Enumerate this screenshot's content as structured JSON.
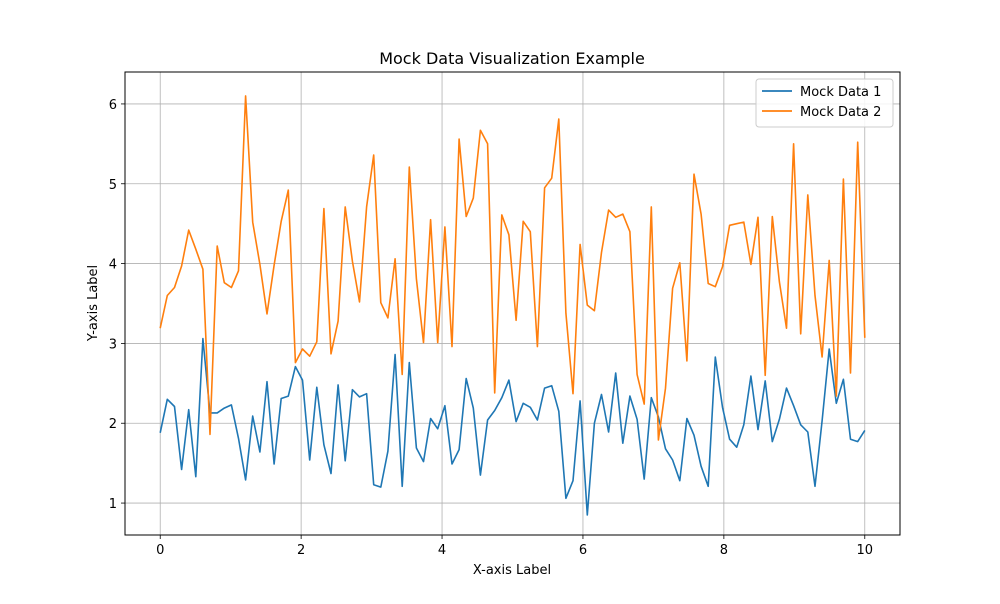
{
  "chart_data": {
    "type": "line",
    "title": "Mock Data Visualization Example",
    "xlabel": "X-axis Label",
    "ylabel": "Y-axis Label",
    "xlim": [
      -0.5,
      10.5
    ],
    "ylim": [
      0.6,
      6.4
    ],
    "xticks": [
      0,
      2,
      4,
      6,
      8,
      10
    ],
    "yticks": [
      1,
      2,
      3,
      4,
      5,
      6
    ],
    "grid": true,
    "legend_position": "top-right",
    "x": [
      0,
      0.101,
      0.202,
      0.303,
      0.404,
      0.505,
      0.606,
      0.707,
      0.808,
      0.909,
      1.01,
      1.111,
      1.212,
      1.313,
      1.414,
      1.515,
      1.616,
      1.717,
      1.818,
      1.919,
      2.02,
      2.121,
      2.222,
      2.323,
      2.424,
      2.525,
      2.626,
      2.727,
      2.828,
      2.929,
      3.03,
      3.131,
      3.232,
      3.333,
      3.434,
      3.535,
      3.636,
      3.737,
      3.838,
      3.939,
      4.04,
      4.141,
      4.242,
      4.343,
      4.444,
      4.545,
      4.646,
      4.747,
      4.848,
      4.949,
      5.051,
      5.152,
      5.253,
      5.354,
      5.455,
      5.556,
      5.657,
      5.758,
      5.859,
      5.96,
      6.061,
      6.162,
      6.263,
      6.364,
      6.465,
      6.566,
      6.667,
      6.768,
      6.869,
      6.97,
      7.071,
      7.172,
      7.273,
      7.374,
      7.475,
      7.576,
      7.677,
      7.778,
      7.879,
      7.98,
      8.081,
      8.182,
      8.283,
      8.384,
      8.485,
      8.586,
      8.687,
      8.788,
      8.889,
      8.99,
      9.091,
      9.192,
      9.293,
      9.394,
      9.495,
      9.596,
      9.697,
      9.798,
      9.899,
      10
    ],
    "series": [
      {
        "name": "Mock Data 1",
        "color": "#1f77b4",
        "values": [
          1.88,
          2.3,
          2.21,
          1.42,
          2.17,
          1.33,
          3.06,
          2.13,
          2.13,
          2.19,
          2.23,
          1.81,
          1.29,
          2.09,
          1.64,
          2.52,
          1.49,
          2.31,
          2.34,
          2.71,
          2.54,
          1.54,
          2.45,
          1.73,
          1.37,
          2.48,
          1.53,
          2.42,
          2.33,
          2.37,
          1.23,
          1.2,
          1.65,
          2.86,
          1.21,
          2.76,
          1.69,
          1.52,
          2.06,
          1.93,
          2.22,
          1.49,
          1.67,
          2.56,
          2.19,
          1.35,
          2.04,
          2.16,
          2.32,
          2.54,
          2.02,
          2.25,
          2.2,
          2.04,
          2.44,
          2.47,
          2.15,
          1.06,
          1.28,
          2.28,
          0.85,
          2.0,
          2.36,
          1.89,
          2.63,
          1.75,
          2.34,
          2.05,
          1.3,
          2.32,
          2.08,
          1.68,
          1.54,
          1.28,
          2.06,
          1.85,
          1.46,
          1.21,
          2.83,
          2.2,
          1.8,
          1.7,
          1.98,
          2.59,
          1.92,
          2.53,
          1.77,
          2.05,
          2.44,
          2.22,
          1.98,
          1.89,
          1.21,
          2.03,
          2.93,
          2.25,
          2.55,
          1.8,
          1.77,
          1.91
        ]
      },
      {
        "name": "Mock Data 2",
        "color": "#ff7f0e",
        "values": [
          3.19,
          3.6,
          3.7,
          3.97,
          4.42,
          4.18,
          3.93,
          1.86,
          4.22,
          3.76,
          3.7,
          3.91,
          6.1,
          4.52,
          3.99,
          3.37,
          3.98,
          4.53,
          4.92,
          2.76,
          2.93,
          2.84,
          3.02,
          4.69,
          2.87,
          3.28,
          4.71,
          4.03,
          3.52,
          4.71,
          5.36,
          3.51,
          3.32,
          4.06,
          2.61,
          5.21,
          3.81,
          3.01,
          4.55,
          3.01,
          4.46,
          2.96,
          5.56,
          4.59,
          4.82,
          5.67,
          5.5,
          2.38,
          4.61,
          4.36,
          3.29,
          4.53,
          4.4,
          2.96,
          4.95,
          5.07,
          5.81,
          3.38,
          2.37,
          4.24,
          3.48,
          3.41,
          4.14,
          4.67,
          4.58,
          4.62,
          4.4,
          2.61,
          2.24,
          4.71,
          1.79,
          2.44,
          3.69,
          4.01,
          2.78,
          5.12,
          4.62,
          3.75,
          3.71,
          3.96,
          4.48,
          4.5,
          4.52,
          3.99,
          4.58,
          2.6,
          4.59,
          3.77,
          3.19,
          5.5,
          3.12,
          4.86,
          3.6,
          2.83,
          4.04,
          2.34,
          5.06,
          2.63,
          5.52,
          3.07
        ]
      }
    ]
  }
}
